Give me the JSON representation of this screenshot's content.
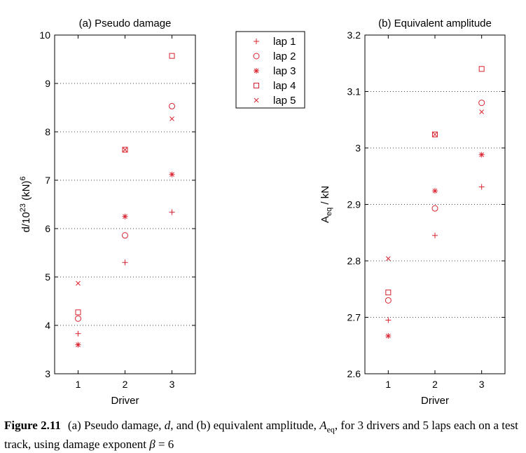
{
  "chart_data": [
    {
      "type": "scatter",
      "title": "(a) Pseudo damage",
      "xlabel": "Driver",
      "ylabel": "d/10^23 (kN)^6",
      "ylabel_parts": {
        "base": "d/10",
        "sup1": "23",
        "unit": " (kN)",
        "sup2": "6"
      },
      "xlim": [
        0.5,
        3.5
      ],
      "ylim": [
        3,
        10
      ],
      "xticks": [
        1,
        2,
        3
      ],
      "yticks": [
        3,
        4,
        5,
        6,
        7,
        8,
        9,
        10
      ],
      "grid": "horizontal dotted",
      "series": [
        {
          "name": "lap 1",
          "marker": "+",
          "x": [
            1,
            2,
            3
          ],
          "y": [
            3.83,
            5.3,
            6.34
          ]
        },
        {
          "name": "lap 2",
          "marker": "o",
          "x": [
            1,
            2,
            3
          ],
          "y": [
            4.14,
            5.86,
            8.53
          ]
        },
        {
          "name": "lap 3",
          "marker": "*",
          "x": [
            1,
            2,
            3
          ],
          "y": [
            3.6,
            6.25,
            7.12
          ]
        },
        {
          "name": "lap 4",
          "marker": "s",
          "x": [
            1,
            2,
            3
          ],
          "y": [
            4.27,
            7.63,
            9.57
          ]
        },
        {
          "name": "lap 5",
          "marker": "x",
          "x": [
            1,
            2,
            3
          ],
          "y": [
            4.87,
            7.63,
            8.27
          ]
        }
      ]
    },
    {
      "type": "scatter",
      "title": "(b) Equivalent amplitude",
      "xlabel": "Driver",
      "ylabel": "Aeq / kN",
      "ylabel_parts": {
        "base": "A",
        "sub": "eq",
        "unit": " / kN"
      },
      "xlim": [
        0.5,
        3.5
      ],
      "ylim": [
        2.6,
        3.2
      ],
      "xticks": [
        1,
        2,
        3
      ],
      "yticks": [
        2.6,
        2.7,
        2.8,
        2.9,
        3,
        3.1,
        3.2
      ],
      "grid": "horizontal dotted",
      "series": [
        {
          "name": "lap 1",
          "marker": "+",
          "x": [
            1,
            2,
            3
          ],
          "y": [
            2.695,
            2.845,
            2.931
          ]
        },
        {
          "name": "lap 2",
          "marker": "o",
          "x": [
            1,
            2,
            3
          ],
          "y": [
            2.73,
            2.893,
            3.08
          ]
        },
        {
          "name": "lap 3",
          "marker": "*",
          "x": [
            1,
            2,
            3
          ],
          "y": [
            2.667,
            2.924,
            2.988
          ]
        },
        {
          "name": "lap 4",
          "marker": "s",
          "x": [
            1,
            2,
            3
          ],
          "y": [
            2.744,
            3.024,
            3.14
          ]
        },
        {
          "name": "lap 5",
          "marker": "x",
          "x": [
            1,
            2,
            3
          ],
          "y": [
            2.804,
            3.024,
            3.064
          ]
        }
      ]
    }
  ],
  "legend": {
    "placement": "between panels, top",
    "entries": [
      "lap 1",
      "lap 2",
      "lap 3",
      "lap 4",
      "lap 5"
    ]
  },
  "colors": {
    "marker": "#d9232e",
    "axis": "#000000",
    "grid": "#000000"
  },
  "caption": {
    "label": "Figure 2.11",
    "text": "(a) Pseudo damage, d, and (b) equivalent amplitude, Aeq, for 3 drivers and 5 laps each on a test track, using damage exponent β = 6",
    "parts": {
      "p1": "(a) Pseudo damage, ",
      "var_d": "d",
      "p2": ", and (b) equivalent amplitude, ",
      "var_A": "A",
      "var_A_sub": "eq",
      "p3": ", for 3 drivers and 5 laps each on a test track, using damage exponent ",
      "var_beta": "β",
      "p4": " = 6"
    }
  }
}
